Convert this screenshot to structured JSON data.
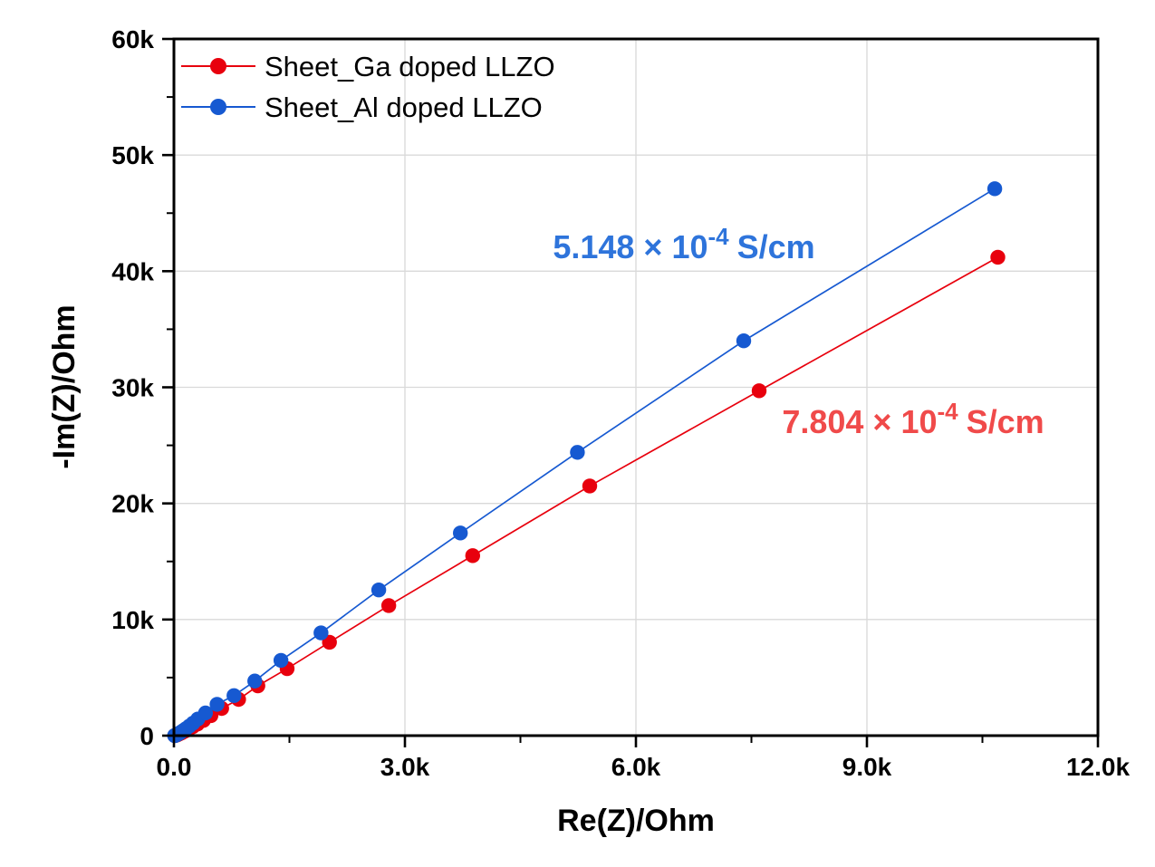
{
  "chart_data": {
    "type": "scatter",
    "title": "",
    "xlabel": "Re(Z)/Ohm",
    "ylabel": "-Im(Z)/Ohm",
    "xlim": [
      0,
      12000
    ],
    "ylim": [
      0,
      60000
    ],
    "grid": true,
    "grid_color": "#d9d9d9",
    "frame_color": "#000000",
    "legend_position": "top-left-inside",
    "x_ticks": {
      "values": [
        0,
        3000,
        6000,
        9000,
        12000
      ],
      "labels": [
        "0.0",
        "3.0k",
        "6.0k",
        "9.0k",
        "12.0k"
      ],
      "minor": [
        1500,
        4500,
        7500,
        10500
      ]
    },
    "y_ticks": {
      "values": [
        0,
        10000,
        20000,
        30000,
        40000,
        50000,
        60000
      ],
      "labels": [
        "0",
        "10k",
        "20k",
        "30k",
        "40k",
        "50k",
        "60k"
      ],
      "minor": [
        5000,
        15000,
        25000,
        35000,
        45000,
        55000
      ]
    },
    "series": [
      {
        "name": "Sheet_Ga doped LLZO",
        "color": "#e8000d",
        "marker": "circle",
        "x": [
          11,
          13,
          17,
          21,
          26,
          32,
          40,
          50,
          63,
          79,
          99,
          124,
          156,
          195,
          244,
          306,
          383,
          480,
          620,
          840,
          1090,
          1470,
          2020,
          2790,
          3880,
          5400,
          7600,
          10700
        ],
        "y": [
          3,
          7,
          13,
          21,
          32,
          47,
          67,
          94,
          130,
          178,
          242,
          325,
          435,
          575,
          760,
          1000,
          1310,
          1720,
          2340,
          3120,
          4290,
          5770,
          8040,
          11200,
          15500,
          21500,
          29700,
          41200
        ]
      },
      {
        "name": "Sheet_Al doped LLZO",
        "color": "#1659d1",
        "marker": "circle",
        "x": [
          9,
          11,
          14,
          17,
          21,
          26,
          33,
          41,
          52,
          65,
          81,
          101,
          127,
          158,
          198,
          248,
          310,
          410,
          560,
          780,
          1050,
          1390,
          1910,
          2660,
          3720,
          5240,
          7400,
          10660
        ],
        "y": [
          3,
          7,
          14,
          24,
          37,
          54,
          76,
          105,
          143,
          193,
          258,
          345,
          460,
          610,
          810,
          1080,
          1430,
          1950,
          2700,
          3450,
          4700,
          6480,
          8850,
          12550,
          17450,
          24400,
          34000,
          47100
        ]
      }
    ],
    "annotations": [
      {
        "prefix": "5.148 × 10",
        "exponent": "-4",
        "suffix": "S/cm",
        "color": "#2e74db",
        "data_x": 6620,
        "data_y": 41500
      },
      {
        "prefix": "7.804 × 10",
        "exponent": "-4",
        "suffix": "S/cm",
        "color": "#f04a4a",
        "data_x": 9600,
        "data_y": 26300
      }
    ]
  }
}
